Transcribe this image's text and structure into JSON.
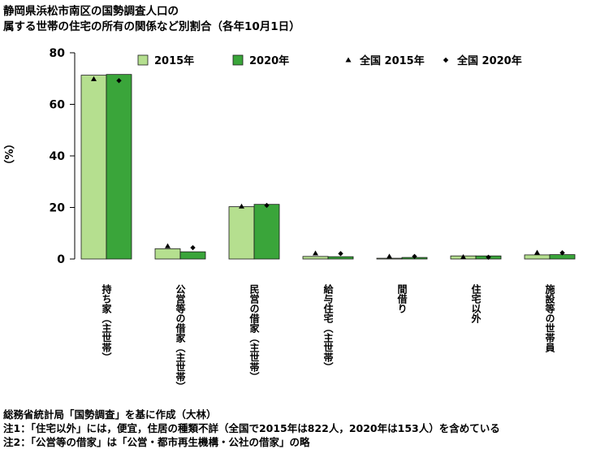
{
  "title_lines": [
    "静岡県浜松市南区の国勢調査人口の",
    "属する世帯の住宅の所有の関係など別割合（各年10月1日）"
  ],
  "notes": [
    "総務省統計局「国勢調査」を基に作成（大林）",
    "注1：「住宅以外」には，便宜，住居の種類不詳（全国で2015年は822人，2020年は153人）を含めている",
    "注2：「公営等の借家」は「公営・都市再生機構・公社の借家」の略"
  ],
  "colors": {
    "s2015": "#b5df8f",
    "s2020": "#3aa53a",
    "bar_edge": "#1a1a1a",
    "marker": "#000000"
  },
  "chart_data": {
    "type": "bar",
    "ylabel": "（%）",
    "ylim": [
      0,
      80
    ],
    "yticks": [
      0,
      20,
      40,
      60,
      80
    ],
    "categories": [
      "持ち家（主世帯）",
      "公営等の借家（主世帯）",
      "民営の借家（主世帯）",
      "給与住宅（主世帯）",
      "間借り",
      "住宅以外",
      "施設等の世帯員"
    ],
    "series": [
      {
        "name": "2015年",
        "kind": "bar",
        "color": "#b5df8f",
        "values": [
          71.3,
          4.0,
          20.3,
          1.0,
          0.3,
          1.2,
          1.6
        ]
      },
      {
        "name": "2020年",
        "kind": "bar",
        "color": "#3aa53a",
        "values": [
          71.6,
          2.8,
          21.2,
          0.9,
          0.6,
          1.2,
          1.7
        ]
      },
      {
        "name": "全国 2015年",
        "kind": "marker",
        "marker": "triangle",
        "values": [
          69.8,
          5.0,
          20.4,
          2.2,
          1.0,
          0.8,
          2.5
        ]
      },
      {
        "name": "全国 2020年",
        "kind": "marker",
        "marker": "diamond",
        "values": [
          69.2,
          4.4,
          20.8,
          2.1,
          1.0,
          0.7,
          2.4
        ]
      }
    ],
    "legend_position": "top"
  }
}
